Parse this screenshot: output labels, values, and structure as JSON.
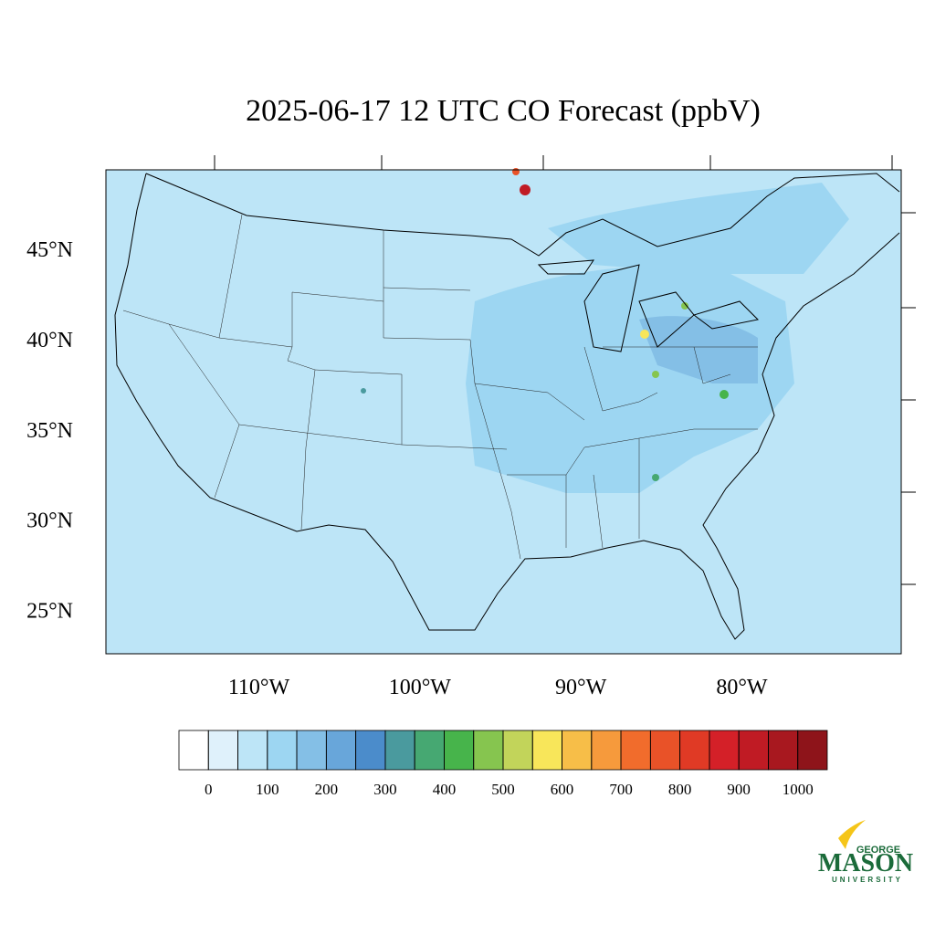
{
  "chart_data": {
    "type": "map",
    "title": "2025-06-17 12 UTC CO Forecast (ppbV)",
    "xlim": [
      -119.5,
      -70.1
    ],
    "ylim": [
      22.6,
      49.4
    ],
    "xticks": [
      {
        "value": -110,
        "label": "110°W"
      },
      {
        "value": -100,
        "label": "100°W"
      },
      {
        "value": -90,
        "label": "90°W"
      },
      {
        "value": -80,
        "label": "80°W"
      }
    ],
    "yticks": [
      {
        "value": 25,
        "label": "25°N"
      },
      {
        "value": 30,
        "label": "30°N"
      },
      {
        "value": 35,
        "label": "35°N"
      },
      {
        "value": 40,
        "label": "40°N"
      },
      {
        "value": 45,
        "label": "45°N"
      }
    ],
    "colorbar": {
      "levels": [
        0,
        50,
        100,
        150,
        200,
        250,
        300,
        350,
        400,
        450,
        500,
        550,
        600,
        650,
        700,
        750,
        800,
        850,
        900,
        950,
        1000
      ],
      "colors": [
        "#ffffff",
        "#dff1fb",
        "#bde5f7",
        "#9dd6f2",
        "#84bfe6",
        "#68a6da",
        "#4b8ccb",
        "#4a9a9e",
        "#46a872",
        "#47b44b",
        "#86c54f",
        "#c2d45a",
        "#f8e65a",
        "#f7be48",
        "#f69a3c",
        "#f16c2c",
        "#e95228",
        "#e03a25",
        "#d42028",
        "#c01b24",
        "#a8181f",
        "#8e141a"
      ],
      "ticks": [
        0,
        100,
        200,
        300,
        400,
        500,
        600,
        700,
        800,
        900,
        1000
      ]
    }
  },
  "logo": {
    "top": "GEORGE",
    "main": "MASON",
    "bottom": "UNIVERSITY"
  }
}
